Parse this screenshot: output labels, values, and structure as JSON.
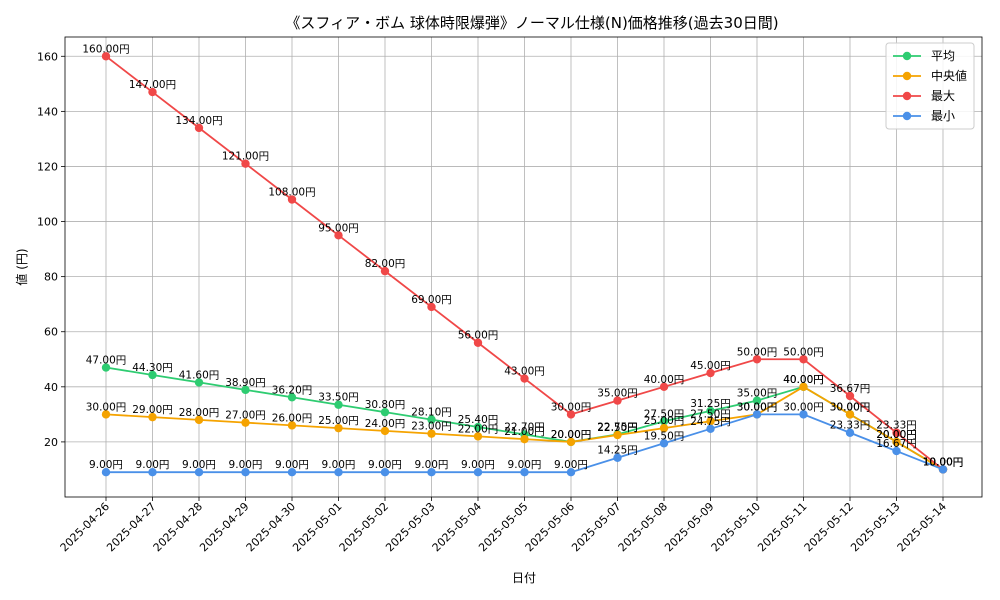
{
  "chart_data": {
    "type": "line",
    "title": "《スフィア・ボム 球体時限爆弾》ノーマル仕様(N)価格推移(過去30日間)",
    "xlabel": "日付",
    "ylabel": "値 (円)",
    "ylim": [
      0,
      167
    ],
    "yticks": [
      20,
      40,
      60,
      80,
      100,
      120,
      140,
      160
    ],
    "grid": true,
    "legend_position": "top-right",
    "label_suffix": "円",
    "categories": [
      "2025-04-26",
      "2025-04-27",
      "2025-04-28",
      "2025-04-29",
      "2025-04-30",
      "2025-05-01",
      "2025-05-02",
      "2025-05-03",
      "2025-05-04",
      "2025-05-05",
      "2025-05-06",
      "2025-05-07",
      "2025-05-08",
      "2025-05-09",
      "2025-05-10",
      "2025-05-11",
      "2025-05-12",
      "2025-05-13",
      "2025-05-14"
    ],
    "series": [
      {
        "name": "平均",
        "color": "#2ecc71",
        "values": [
          47.0,
          44.3,
          41.6,
          38.9,
          36.2,
          33.5,
          30.8,
          28.1,
          25.4,
          22.7,
          20.0,
          22.75,
          27.5,
          31.25,
          35.0,
          40.0,
          30.0,
          20.0,
          10.0
        ]
      },
      {
        "name": "中央値",
        "color": "#f5a300",
        "values": [
          30.0,
          29.0,
          28.0,
          27.0,
          26.0,
          25.0,
          24.0,
          23.0,
          22.0,
          21.0,
          20.0,
          22.5,
          25.0,
          27.5,
          30.0,
          40.0,
          30.0,
          20.0,
          10.0
        ]
      },
      {
        "name": "最大",
        "color": "#f04848",
        "values": [
          160.0,
          147.0,
          134.0,
          121.0,
          108.0,
          95.0,
          82.0,
          69.0,
          56.0,
          43.0,
          30.0,
          35.0,
          40.0,
          45.0,
          50.0,
          50.0,
          36.67,
          23.33,
          10.0
        ]
      },
      {
        "name": "最小",
        "color": "#4a90e8",
        "values": [
          9.0,
          9.0,
          9.0,
          9.0,
          9.0,
          9.0,
          9.0,
          9.0,
          9.0,
          9.0,
          9.0,
          14.25,
          19.5,
          24.75,
          30.0,
          30.0,
          23.33,
          16.67,
          10.0
        ]
      }
    ]
  }
}
